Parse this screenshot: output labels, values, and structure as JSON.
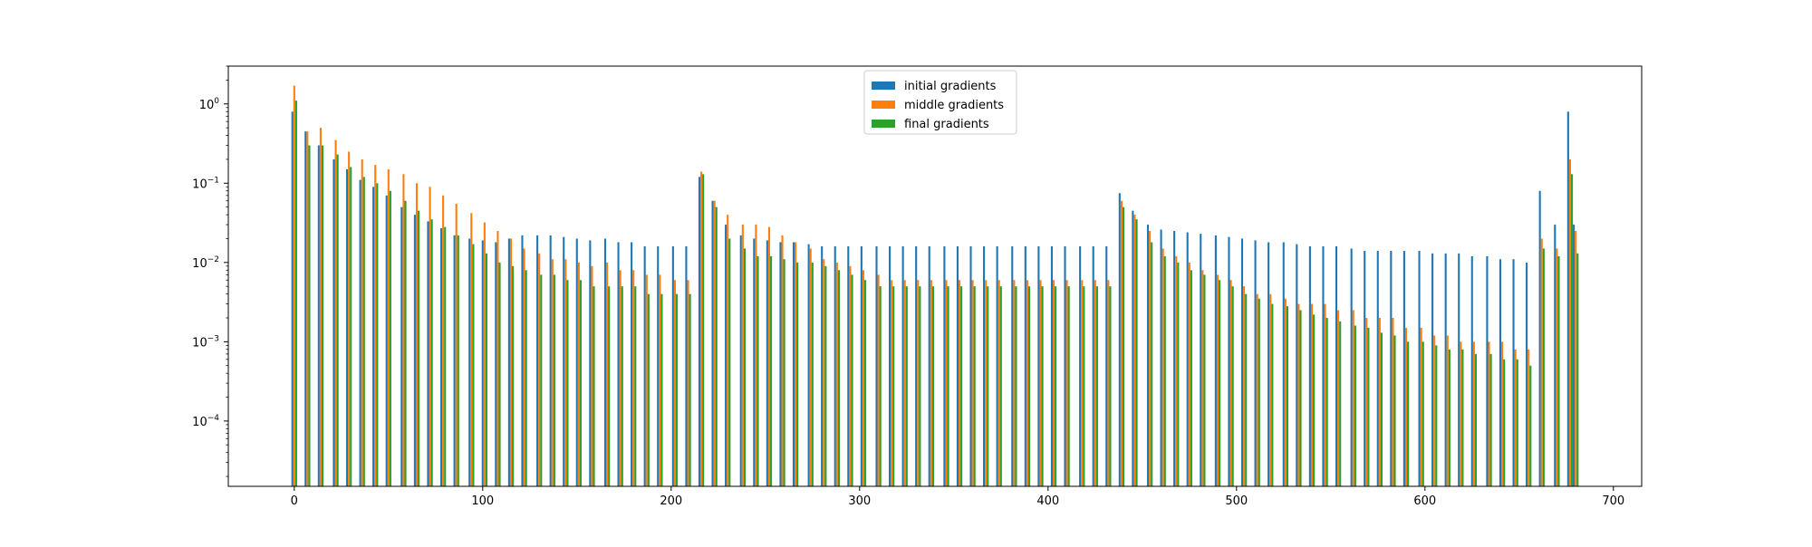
{
  "chart_data": {
    "type": "bar",
    "grouping": "grouped",
    "yscale": "log",
    "title": "",
    "xlabel": "",
    "ylabel": "",
    "xlim": [
      -35,
      715
    ],
    "ylim": [
      1.5e-05,
      3.0
    ],
    "xticks": [
      0,
      100,
      200,
      300,
      400,
      500,
      600,
      700
    ],
    "xtick_labels": [
      "0",
      "100",
      "200",
      "300",
      "400",
      "500",
      "600",
      "700"
    ],
    "yticks": [
      0.0001,
      0.001,
      0.01,
      0.1,
      1
    ],
    "ytick_labels": [
      {
        "base": "10",
        "exp": "−4"
      },
      {
        "base": "10",
        "exp": "−3"
      },
      {
        "base": "10",
        "exp": "−2"
      },
      {
        "base": "10",
        "exp": "−1"
      },
      {
        "base": "10",
        "exp": "0"
      }
    ],
    "legend_position": "upper center",
    "grid": false,
    "x": [
      0,
      7,
      14,
      22,
      29,
      36,
      43,
      50,
      58,
      65,
      72,
      79,
      86,
      94,
      101,
      108,
      115,
      122,
      130,
      137,
      144,
      151,
      158,
      166,
      173,
      180,
      187,
      194,
      202,
      209,
      216,
      223,
      230,
      238,
      245,
      252,
      259,
      266,
      274,
      281,
      288,
      295,
      302,
      310,
      317,
      324,
      331,
      338,
      346,
      353,
      360,
      367,
      374,
      382,
      389,
      396,
      403,
      410,
      418,
      425,
      432,
      439,
      446,
      454,
      461,
      468,
      475,
      482,
      490,
      497,
      504,
      511,
      518,
      526,
      533,
      540,
      547,
      554,
      562,
      569,
      576,
      583,
      590,
      598,
      605,
      612,
      619,
      626,
      634,
      641,
      648,
      655,
      662,
      670,
      677,
      680
    ],
    "series": [
      {
        "name": "initial gradients",
        "color": "#1f77b4",
        "values": [
          0.8,
          0.45,
          0.3,
          0.2,
          0.15,
          0.11,
          0.09,
          0.07,
          0.05,
          0.04,
          0.033,
          0.027,
          0.022,
          0.02,
          0.019,
          0.018,
          0.02,
          0.022,
          0.022,
          0.022,
          0.021,
          0.02,
          0.019,
          0.02,
          0.018,
          0.018,
          0.016,
          0.016,
          0.016,
          0.016,
          0.12,
          0.06,
          0.03,
          0.022,
          0.02,
          0.019,
          0.018,
          0.018,
          0.017,
          0.016,
          0.016,
          0.016,
          0.016,
          0.016,
          0.016,
          0.016,
          0.016,
          0.016,
          0.016,
          0.016,
          0.016,
          0.016,
          0.016,
          0.016,
          0.016,
          0.016,
          0.016,
          0.016,
          0.016,
          0.016,
          0.016,
          0.075,
          0.045,
          0.03,
          0.026,
          0.025,
          0.024,
          0.023,
          0.022,
          0.021,
          0.02,
          0.019,
          0.018,
          0.018,
          0.017,
          0.016,
          0.016,
          0.016,
          0.015,
          0.014,
          0.014,
          0.014,
          0.014,
          0.014,
          0.013,
          0.013,
          0.013,
          0.012,
          0.012,
          0.011,
          0.011,
          0.01,
          0.08,
          0.03,
          0.8,
          0.03
        ]
      },
      {
        "name": "middle gradients",
        "color": "#ff7f0e",
        "values": [
          1.7,
          0.45,
          0.5,
          0.35,
          0.25,
          0.2,
          0.17,
          0.15,
          0.13,
          0.1,
          0.09,
          0.07,
          0.055,
          0.042,
          0.032,
          0.025,
          0.02,
          0.015,
          0.013,
          0.011,
          0.011,
          0.01,
          0.009,
          0.01,
          0.008,
          0.008,
          0.007,
          0.007,
          0.006,
          0.006,
          0.14,
          0.06,
          0.04,
          0.03,
          0.03,
          0.028,
          0.022,
          0.018,
          0.015,
          0.011,
          0.01,
          0.009,
          0.008,
          0.007,
          0.006,
          0.006,
          0.006,
          0.006,
          0.006,
          0.006,
          0.006,
          0.006,
          0.006,
          0.006,
          0.006,
          0.006,
          0.006,
          0.006,
          0.006,
          0.006,
          0.006,
          0.06,
          0.04,
          0.025,
          0.015,
          0.012,
          0.01,
          0.008,
          0.007,
          0.006,
          0.005,
          0.004,
          0.004,
          0.0035,
          0.003,
          0.003,
          0.003,
          0.0025,
          0.0025,
          0.002,
          0.002,
          0.002,
          0.0015,
          0.0015,
          0.0012,
          0.0012,
          0.001,
          0.001,
          0.001,
          0.001,
          0.0008,
          0.0008,
          0.02,
          0.015,
          0.2,
          0.025
        ]
      },
      {
        "name": "final gradients",
        "color": "#2ca02c",
        "values": [
          1.1,
          0.3,
          0.3,
          0.23,
          0.16,
          0.12,
          0.1,
          0.08,
          0.06,
          0.045,
          0.035,
          0.028,
          0.022,
          0.017,
          0.013,
          0.01,
          0.009,
          0.008,
          0.007,
          0.007,
          0.006,
          0.006,
          0.005,
          0.005,
          0.005,
          0.005,
          0.004,
          0.004,
          0.004,
          0.004,
          0.13,
          0.05,
          0.02,
          0.015,
          0.012,
          0.012,
          0.011,
          0.01,
          0.01,
          0.009,
          0.008,
          0.007,
          0.006,
          0.005,
          0.005,
          0.005,
          0.005,
          0.005,
          0.005,
          0.005,
          0.005,
          0.005,
          0.005,
          0.005,
          0.005,
          0.005,
          0.005,
          0.005,
          0.005,
          0.005,
          0.005,
          0.05,
          0.035,
          0.018,
          0.012,
          0.01,
          0.008,
          0.007,
          0.006,
          0.005,
          0.004,
          0.0035,
          0.003,
          0.0028,
          0.0025,
          0.0022,
          0.002,
          0.0018,
          0.0016,
          0.0015,
          0.0013,
          0.0012,
          0.001,
          0.001,
          0.0009,
          0.0008,
          0.0008,
          0.0007,
          0.0007,
          0.0006,
          0.0006,
          0.0005,
          0.015,
          0.012,
          0.13,
          0.013
        ]
      }
    ]
  }
}
